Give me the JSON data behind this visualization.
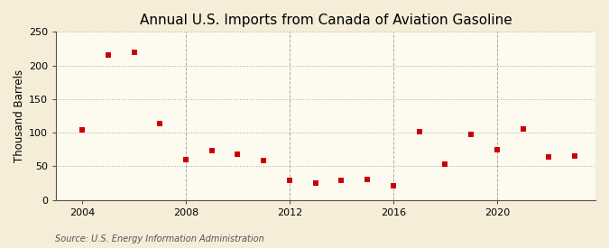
{
  "title": "Annual U.S. Imports from Canada of Aviation Gasoline",
  "ylabel": "Thousand Barrels",
  "source": "Source: U.S. Energy Information Administration",
  "background_color": "#f5edd8",
  "plot_background_color": "#fdfaf0",
  "years": [
    2004,
    2005,
    2006,
    2007,
    2008,
    2009,
    2010,
    2011,
    2012,
    2013,
    2014,
    2015,
    2016,
    2017,
    2018,
    2019,
    2020,
    2021,
    2022,
    2023
  ],
  "values": [
    104,
    215,
    220,
    113,
    60,
    73,
    68,
    59,
    29,
    25,
    29,
    30,
    21,
    101,
    53,
    98,
    75,
    105,
    64,
    66
  ],
  "marker_color": "#cc0000",
  "marker_size": 4,
  "xlim": [
    2003.0,
    2023.8
  ],
  "ylim": [
    0,
    250
  ],
  "yticks": [
    0,
    50,
    100,
    150,
    200,
    250
  ],
  "xticks": [
    2004,
    2008,
    2012,
    2016,
    2020
  ],
  "vgrid_ticks": [
    2008,
    2012,
    2016,
    2020
  ],
  "title_fontsize": 11,
  "ylabel_fontsize": 8.5,
  "tick_fontsize": 8,
  "source_fontsize": 7
}
